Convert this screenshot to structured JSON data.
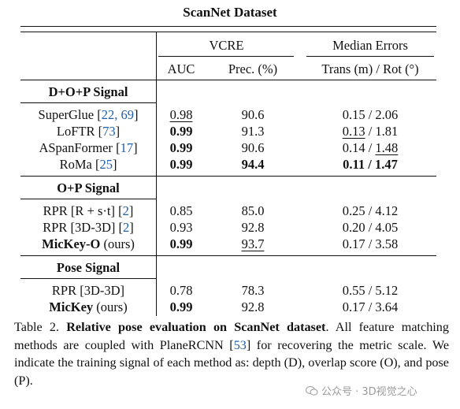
{
  "title": "ScanNet Dataset",
  "headers": {
    "vcre": "VCRE",
    "median": "Median Errors",
    "auc": "AUC",
    "prec": "Prec. (%)",
    "transrot": "Trans (m) / Rot (°)"
  },
  "sections": [
    {
      "label": "D+O+P Signal",
      "rows": [
        {
          "name": "SuperGlue",
          "cite": "22, 69",
          "auc": "0.98",
          "prec": "90.6",
          "trans": "0.15",
          "rot": "2.06"
        },
        {
          "name": "LoFTR",
          "cite": "73",
          "auc": "0.99",
          "prec": "91.3",
          "trans": "0.13",
          "rot": "1.81"
        },
        {
          "name": "ASpanFormer",
          "cite": "17",
          "auc": "0.99",
          "prec": "90.6",
          "trans": "0.14",
          "rot": "1.48"
        },
        {
          "name": "RoMa",
          "cite": "25",
          "auc": "0.99",
          "prec": "94.4",
          "trans": "0.11",
          "rot": "1.47"
        }
      ]
    },
    {
      "label": "O+P Signal",
      "rows": [
        {
          "name": "RPR [R + s·t]",
          "cite": "2",
          "auc": "0.85",
          "prec": "85.0",
          "trans": "0.25",
          "rot": "4.12"
        },
        {
          "name": "RPR [3D-3D]",
          "cite": "2",
          "auc": "0.93",
          "prec": "92.8",
          "trans": "0.20",
          "rot": "4.05"
        },
        {
          "name_bold": "MicKey-O",
          "name_suffix": "(ours)",
          "auc": "0.99",
          "prec": "93.7",
          "trans": "0.17",
          "rot": "3.58"
        }
      ]
    },
    {
      "label": "Pose Signal",
      "rows": [
        {
          "name": "RPR [3D-3D]",
          "auc": "0.78",
          "prec": "78.3",
          "trans": "0.55",
          "rot": "5.12"
        },
        {
          "name_bold": "MicKey",
          "name_suffix": "(ours)",
          "auc": "0.99",
          "prec": "92.8",
          "trans": "0.17",
          "rot": "3.64"
        }
      ]
    }
  ],
  "caption": {
    "label": "Table 2.",
    "bold_title": "Relative pose evaluation on ScanNet dataset",
    "text1": ". All feature matching methods are coupled with PlaneRCNN [",
    "cite": "53",
    "text2": "] for recovering the metric scale. We indicate the training signal of each method as: depth (D), overlap score (O), and pose (P)."
  },
  "watermark": "公众号 · 3D视觉之心"
}
